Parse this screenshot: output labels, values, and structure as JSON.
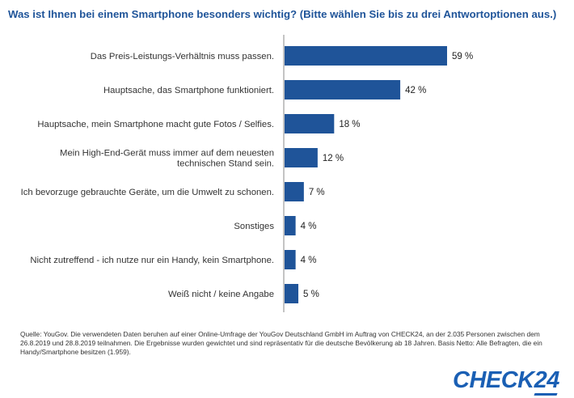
{
  "title": "Was ist Ihnen bei einem Smartphone besonders wichtig? (Bitte wählen Sie bis zu drei Antwortoptionen aus.)",
  "chart_data": {
    "type": "bar",
    "orientation": "horizontal",
    "categories": [
      [
        "Das Preis-Leistungs-Verhältnis muss passen."
      ],
      [
        "Hauptsache, das Smartphone funktioniert."
      ],
      [
        "Hauptsache, mein Smartphone macht gute Fotos / Selfies."
      ],
      [
        "Mein High-End-Gerät muss immer auf dem neuesten",
        "technischen Stand sein."
      ],
      [
        "Ich bevorzuge gebrauchte Geräte, um die Umwelt zu schonen."
      ],
      [
        "Sonstiges"
      ],
      [
        "Nicht zutreffend - ich nutze nur ein Handy, kein Smartphone."
      ],
      [
        "Weiß nicht / keine Angabe"
      ]
    ],
    "values": [
      59,
      42,
      18,
      12,
      7,
      4,
      4,
      5
    ],
    "value_labels": [
      "59 %",
      "42 %",
      "18 %",
      "12 %",
      "7 %",
      "4 %",
      "4 %",
      "5 %"
    ],
    "unit": "%",
    "xlim": [
      0,
      59
    ],
    "grid": false,
    "bar_color": "#1f5499"
  },
  "source": "Quelle: YouGov. Die verwendeten Daten beruhen auf einer Online-Umfrage der YouGov Deutschland GmbH im Auftrag von CHECK24, an der 2.035 Personen zwischen dem 26.8.2019 und 28.8.2019 teilnahmen. Die Ergebnisse wurden gewichtet und sind repräsentativ für die deutsche Bevölkerung ab 18 Jahren. Basis Netto: Alle Befragten, die ein Handy/Smartphone besitzen (1.959).",
  "logo": "CHECK24"
}
